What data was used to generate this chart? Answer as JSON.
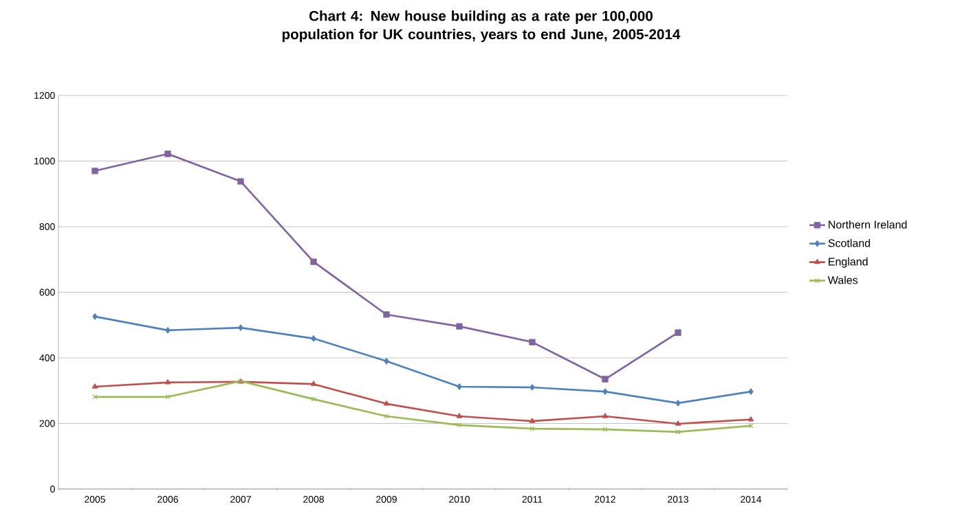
{
  "chart_data": {
    "type": "line",
    "title": "Chart 4: New house building as a rate per 100,000 population for UK countries, years to end June, 2005-2014",
    "categories": [
      "2005",
      "2006",
      "2007",
      "2008",
      "2009",
      "2010",
      "2011",
      "2012",
      "2013",
      "2014"
    ],
    "series": [
      {
        "name": "Northern Ireland",
        "color": "#8064a2",
        "marker": "square",
        "values": [
          970,
          1022,
          938,
          693,
          532,
          496,
          448,
          335,
          477,
          null
        ]
      },
      {
        "name": "Scotland",
        "color": "#4f81bd",
        "marker": "diamond",
        "values": [
          526,
          484,
          492,
          459,
          390,
          312,
          310,
          297,
          262,
          297
        ]
      },
      {
        "name": "England",
        "color": "#c0504d",
        "marker": "triangle",
        "values": [
          312,
          325,
          327,
          320,
          260,
          222,
          207,
          222,
          199,
          212
        ]
      },
      {
        "name": "Wales",
        "color": "#9bbb59",
        "marker": "cross",
        "values": [
          281,
          281,
          329,
          274,
          222,
          195,
          184,
          182,
          174,
          193
        ]
      }
    ],
    "ylim": [
      0,
      1200
    ],
    "yticks": [
      0,
      200,
      400,
      600,
      800,
      1000,
      1200
    ],
    "grid": "y",
    "legend": "right",
    "line_style": "solid"
  }
}
